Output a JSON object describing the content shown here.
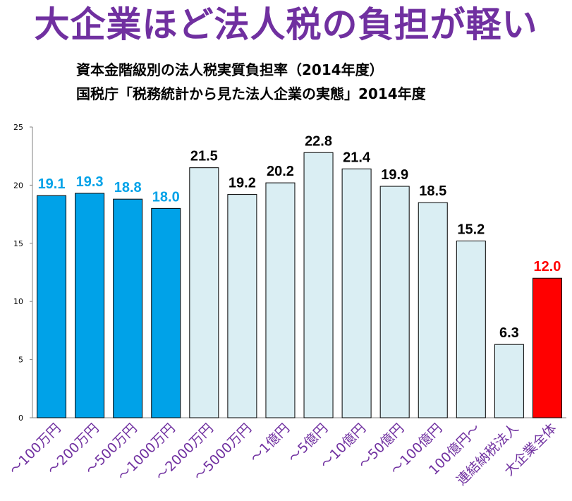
{
  "header": {
    "headline": "大企業ほど法人税の負担が軽い",
    "subtitle_1": "資本金階級別の法人税実質負担率（2014年度）",
    "subtitle_2": "国税庁「税務統計から見た法人企業の実態」2014年度"
  },
  "chart_data": {
    "type": "bar",
    "title": "資本金階級別の法人税実質負担率（2014年度）",
    "xlabel": "",
    "ylabel": "",
    "ylim": [
      0,
      25
    ],
    "yticks": [
      0,
      5,
      10,
      15,
      20,
      25
    ],
    "grid": false,
    "categories": [
      "～100万円",
      "～200万円",
      "～500万円",
      "～1000万円",
      "～2000万円",
      "～5000万円",
      "～1億円",
      "～5億円",
      "～10億円",
      "～50億円",
      "～100億円",
      "100億円～",
      "連結納税法人",
      "大企業全体"
    ],
    "values": [
      19.1,
      19.3,
      18.8,
      18.0,
      21.5,
      19.2,
      20.2,
      22.8,
      21.4,
      19.9,
      18.5,
      15.2,
      6.3,
      12.0
    ],
    "labels": [
      "19.1",
      "19.3",
      "18.8",
      "18.0",
      "21.5",
      "19.2",
      "20.2",
      "22.8",
      "21.4",
      "19.9",
      "18.5",
      "15.2",
      "6.3",
      "12.0"
    ],
    "groups": [
      "small",
      "small",
      "small",
      "small",
      "other",
      "other",
      "other",
      "other",
      "other",
      "other",
      "other",
      "other",
      "other",
      "total"
    ]
  },
  "colors": {
    "headline": "#7030a0",
    "category_label": "#7030a0",
    "small_bar": "#00a2e8",
    "small_label": "#00a2e8",
    "other_bar": "#daeef3",
    "other_label": "#000000",
    "total_bar": "#ff0000",
    "total_label": "#ff0000",
    "bar_stroke": "#000000",
    "axis": "#808080"
  }
}
